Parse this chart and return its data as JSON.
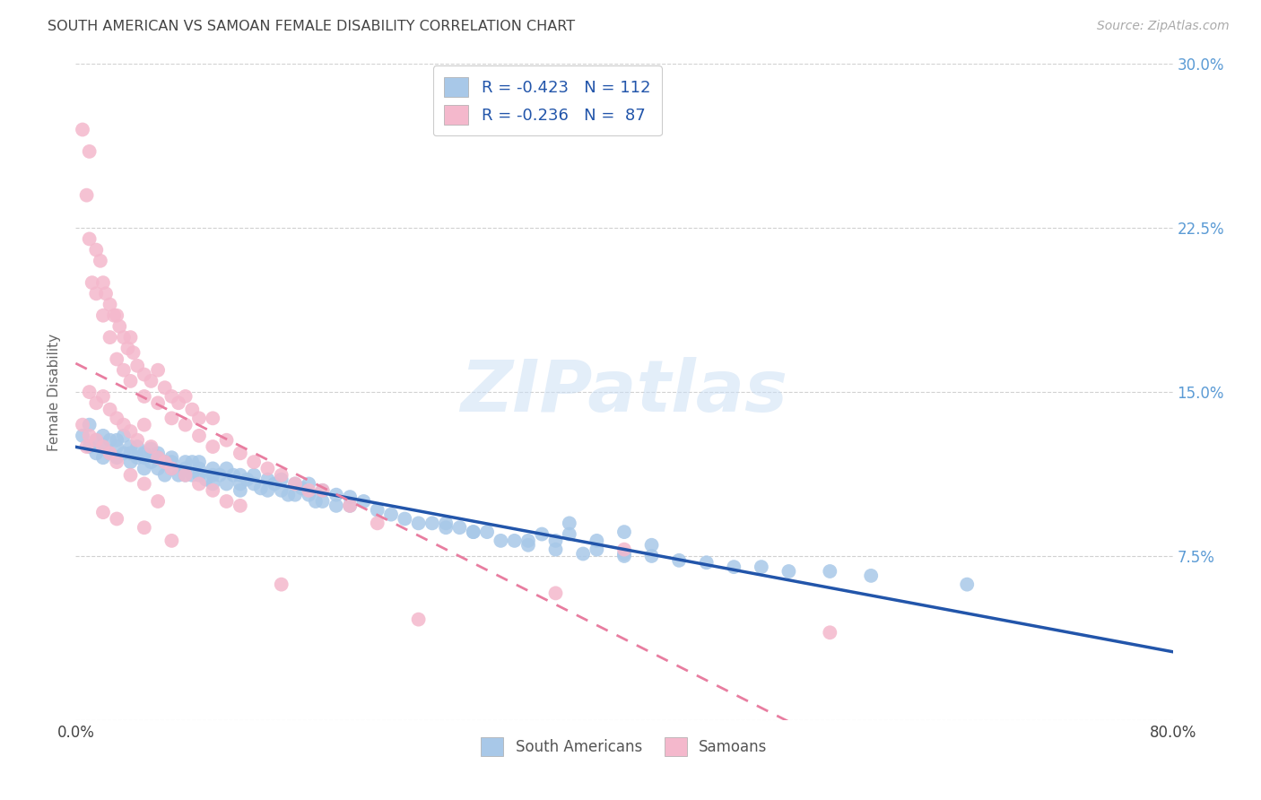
{
  "title": "SOUTH AMERICAN VS SAMOAN FEMALE DISABILITY CORRELATION CHART",
  "source": "Source: ZipAtlas.com",
  "ylabel": "Female Disability",
  "watermark": "ZIPatlas",
  "xlim": [
    0.0,
    0.8
  ],
  "ylim": [
    0.0,
    0.3
  ],
  "blue_color": "#a8c8e8",
  "pink_color": "#f4b8cc",
  "blue_line_color": "#2255aa",
  "pink_line_color": "#e87da0",
  "title_color": "#444444",
  "axis_label_color": "#666666",
  "right_tick_color": "#5b9bd5",
  "legend_text_color": "#2255aa",
  "grid_color": "#cccccc",
  "south_american_x": [
    0.005,
    0.01,
    0.01,
    0.015,
    0.015,
    0.02,
    0.02,
    0.02,
    0.025,
    0.025,
    0.03,
    0.03,
    0.03,
    0.035,
    0.035,
    0.04,
    0.04,
    0.04,
    0.045,
    0.045,
    0.05,
    0.05,
    0.05,
    0.055,
    0.055,
    0.06,
    0.06,
    0.06,
    0.065,
    0.065,
    0.07,
    0.07,
    0.07,
    0.075,
    0.08,
    0.08,
    0.08,
    0.085,
    0.085,
    0.09,
    0.09,
    0.09,
    0.095,
    0.1,
    0.1,
    0.1,
    0.105,
    0.11,
    0.11,
    0.115,
    0.12,
    0.12,
    0.12,
    0.125,
    0.13,
    0.13,
    0.135,
    0.14,
    0.14,
    0.145,
    0.15,
    0.15,
    0.155,
    0.16,
    0.16,
    0.165,
    0.17,
    0.17,
    0.175,
    0.18,
    0.18,
    0.19,
    0.19,
    0.2,
    0.2,
    0.21,
    0.22,
    0.23,
    0.24,
    0.25,
    0.26,
    0.27,
    0.28,
    0.29,
    0.3,
    0.31,
    0.32,
    0.33,
    0.35,
    0.37,
    0.38,
    0.4,
    0.42,
    0.44,
    0.46,
    0.48,
    0.5,
    0.52,
    0.55,
    0.58,
    0.36,
    0.34,
    0.38,
    0.4,
    0.42,
    0.35,
    0.29,
    0.27,
    0.33,
    0.36,
    0.4,
    0.65
  ],
  "south_american_y": [
    0.13,
    0.125,
    0.135,
    0.128,
    0.122,
    0.13,
    0.125,
    0.12,
    0.128,
    0.122,
    0.125,
    0.12,
    0.128,
    0.122,
    0.13,
    0.125,
    0.118,
    0.122,
    0.12,
    0.125,
    0.12,
    0.115,
    0.122,
    0.118,
    0.124,
    0.12,
    0.115,
    0.122,
    0.118,
    0.112,
    0.12,
    0.115,
    0.118,
    0.112,
    0.118,
    0.115,
    0.112,
    0.118,
    0.112,
    0.115,
    0.112,
    0.118,
    0.11,
    0.115,
    0.112,
    0.108,
    0.112,
    0.115,
    0.108,
    0.112,
    0.108,
    0.112,
    0.105,
    0.11,
    0.108,
    0.112,
    0.106,
    0.11,
    0.105,
    0.108,
    0.105,
    0.11,
    0.103,
    0.108,
    0.103,
    0.106,
    0.103,
    0.108,
    0.1,
    0.105,
    0.1,
    0.103,
    0.098,
    0.102,
    0.098,
    0.1,
    0.096,
    0.094,
    0.092,
    0.09,
    0.09,
    0.088,
    0.088,
    0.086,
    0.086,
    0.082,
    0.082,
    0.08,
    0.078,
    0.076,
    0.078,
    0.076,
    0.075,
    0.073,
    0.072,
    0.07,
    0.07,
    0.068,
    0.068,
    0.066,
    0.09,
    0.085,
    0.082,
    0.086,
    0.08,
    0.082,
    0.086,
    0.09,
    0.082,
    0.085,
    0.075,
    0.062
  ],
  "samoan_x": [
    0.005,
    0.008,
    0.01,
    0.01,
    0.012,
    0.015,
    0.015,
    0.018,
    0.02,
    0.02,
    0.022,
    0.025,
    0.025,
    0.028,
    0.03,
    0.03,
    0.032,
    0.035,
    0.035,
    0.038,
    0.04,
    0.04,
    0.042,
    0.045,
    0.05,
    0.05,
    0.055,
    0.06,
    0.06,
    0.065,
    0.07,
    0.07,
    0.075,
    0.08,
    0.08,
    0.085,
    0.09,
    0.09,
    0.1,
    0.1,
    0.11,
    0.12,
    0.13,
    0.14,
    0.15,
    0.16,
    0.17,
    0.18,
    0.2,
    0.22,
    0.01,
    0.015,
    0.02,
    0.025,
    0.03,
    0.035,
    0.04,
    0.045,
    0.05,
    0.055,
    0.06,
    0.065,
    0.07,
    0.08,
    0.09,
    0.1,
    0.11,
    0.12,
    0.005,
    0.008,
    0.01,
    0.015,
    0.02,
    0.025,
    0.03,
    0.04,
    0.05,
    0.06,
    0.02,
    0.03,
    0.05,
    0.07,
    0.4,
    0.15,
    0.25,
    0.35,
    0.55
  ],
  "samoan_y": [
    0.27,
    0.24,
    0.26,
    0.22,
    0.2,
    0.215,
    0.195,
    0.21,
    0.2,
    0.185,
    0.195,
    0.19,
    0.175,
    0.185,
    0.185,
    0.165,
    0.18,
    0.175,
    0.16,
    0.17,
    0.175,
    0.155,
    0.168,
    0.162,
    0.158,
    0.148,
    0.155,
    0.16,
    0.145,
    0.152,
    0.148,
    0.138,
    0.145,
    0.148,
    0.135,
    0.142,
    0.138,
    0.13,
    0.138,
    0.125,
    0.128,
    0.122,
    0.118,
    0.115,
    0.112,
    0.108,
    0.105,
    0.105,
    0.098,
    0.09,
    0.15,
    0.145,
    0.148,
    0.142,
    0.138,
    0.135,
    0.132,
    0.128,
    0.135,
    0.125,
    0.12,
    0.118,
    0.115,
    0.112,
    0.108,
    0.105,
    0.1,
    0.098,
    0.135,
    0.125,
    0.13,
    0.128,
    0.125,
    0.122,
    0.118,
    0.112,
    0.108,
    0.1,
    0.095,
    0.092,
    0.088,
    0.082,
    0.078,
    0.062,
    0.046,
    0.058,
    0.04
  ]
}
